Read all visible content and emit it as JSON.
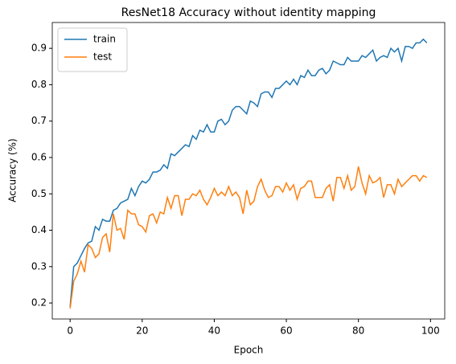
{
  "chart_data": {
    "type": "line",
    "title": "ResNet18 Accuracy without identity mapping",
    "x_label": "Epoch",
    "y_label": "Accuracy (%)",
    "x": [
      0,
      1,
      2,
      3,
      4,
      5,
      6,
      7,
      8,
      9,
      10,
      11,
      12,
      13,
      14,
      15,
      16,
      17,
      18,
      19,
      20,
      21,
      22,
      23,
      24,
      25,
      26,
      27,
      28,
      29,
      30,
      31,
      32,
      33,
      34,
      35,
      36,
      37,
      38,
      39,
      40,
      41,
      42,
      43,
      44,
      45,
      46,
      47,
      48,
      49,
      50,
      51,
      52,
      53,
      54,
      55,
      56,
      57,
      58,
      59,
      60,
      61,
      62,
      63,
      64,
      65,
      66,
      67,
      68,
      69,
      70,
      71,
      72,
      73,
      74,
      75,
      76,
      77,
      78,
      79,
      80,
      81,
      82,
      83,
      84,
      85,
      86,
      87,
      88,
      89,
      90,
      91,
      92,
      93,
      94,
      95,
      96,
      97,
      98,
      99
    ],
    "series": [
      {
        "name": "train",
        "color": "#1f77b4",
        "values": [
          0.19,
          0.3,
          0.31,
          0.33,
          0.35,
          0.365,
          0.37,
          0.41,
          0.4,
          0.43,
          0.425,
          0.425,
          0.455,
          0.46,
          0.475,
          0.48,
          0.485,
          0.515,
          0.495,
          0.52,
          0.535,
          0.53,
          0.54,
          0.56,
          0.56,
          0.565,
          0.58,
          0.57,
          0.61,
          0.605,
          0.615,
          0.625,
          0.635,
          0.63,
          0.66,
          0.65,
          0.675,
          0.67,
          0.69,
          0.67,
          0.67,
          0.7,
          0.705,
          0.69,
          0.7,
          0.73,
          0.74,
          0.74,
          0.73,
          0.72,
          0.755,
          0.75,
          0.74,
          0.775,
          0.78,
          0.78,
          0.765,
          0.79,
          0.79,
          0.8,
          0.81,
          0.8,
          0.815,
          0.8,
          0.825,
          0.82,
          0.84,
          0.825,
          0.825,
          0.84,
          0.845,
          0.83,
          0.84,
          0.865,
          0.86,
          0.855,
          0.855,
          0.875,
          0.865,
          0.865,
          0.865,
          0.88,
          0.875,
          0.885,
          0.895,
          0.865,
          0.875,
          0.88,
          0.875,
          0.9,
          0.89,
          0.9,
          0.865,
          0.905,
          0.905,
          0.9,
          0.915,
          0.915,
          0.925,
          0.915
        ]
      },
      {
        "name": "test",
        "color": "#ff7f0e",
        "values": [
          0.185,
          0.26,
          0.28,
          0.315,
          0.285,
          0.36,
          0.35,
          0.325,
          0.335,
          0.38,
          0.39,
          0.34,
          0.445,
          0.4,
          0.405,
          0.375,
          0.455,
          0.445,
          0.445,
          0.415,
          0.41,
          0.395,
          0.44,
          0.445,
          0.42,
          0.45,
          0.445,
          0.49,
          0.46,
          0.495,
          0.495,
          0.44,
          0.485,
          0.485,
          0.5,
          0.495,
          0.51,
          0.485,
          0.47,
          0.49,
          0.515,
          0.495,
          0.505,
          0.495,
          0.52,
          0.495,
          0.505,
          0.49,
          0.445,
          0.51,
          0.47,
          0.48,
          0.52,
          0.54,
          0.51,
          0.49,
          0.495,
          0.52,
          0.52,
          0.505,
          0.53,
          0.51,
          0.525,
          0.485,
          0.515,
          0.52,
          0.535,
          0.535,
          0.49,
          0.49,
          0.49,
          0.515,
          0.525,
          0.48,
          0.545,
          0.545,
          0.515,
          0.55,
          0.51,
          0.52,
          0.575,
          0.53,
          0.5,
          0.55,
          0.53,
          0.535,
          0.545,
          0.49,
          0.525,
          0.525,
          0.5,
          0.54,
          0.52,
          0.53,
          0.54,
          0.55,
          0.55,
          0.535,
          0.55,
          0.545
        ]
      }
    ],
    "xlim": [
      -4.95,
      103.95
    ],
    "xticks": [
      0,
      20,
      40,
      60,
      80,
      100
    ],
    "ylim": [
      0.156,
      0.971
    ],
    "yticks": [
      0.2,
      0.3,
      0.4,
      0.5,
      0.6,
      0.7,
      0.8,
      0.9
    ],
    "grid": false,
    "legend": "upper left"
  }
}
